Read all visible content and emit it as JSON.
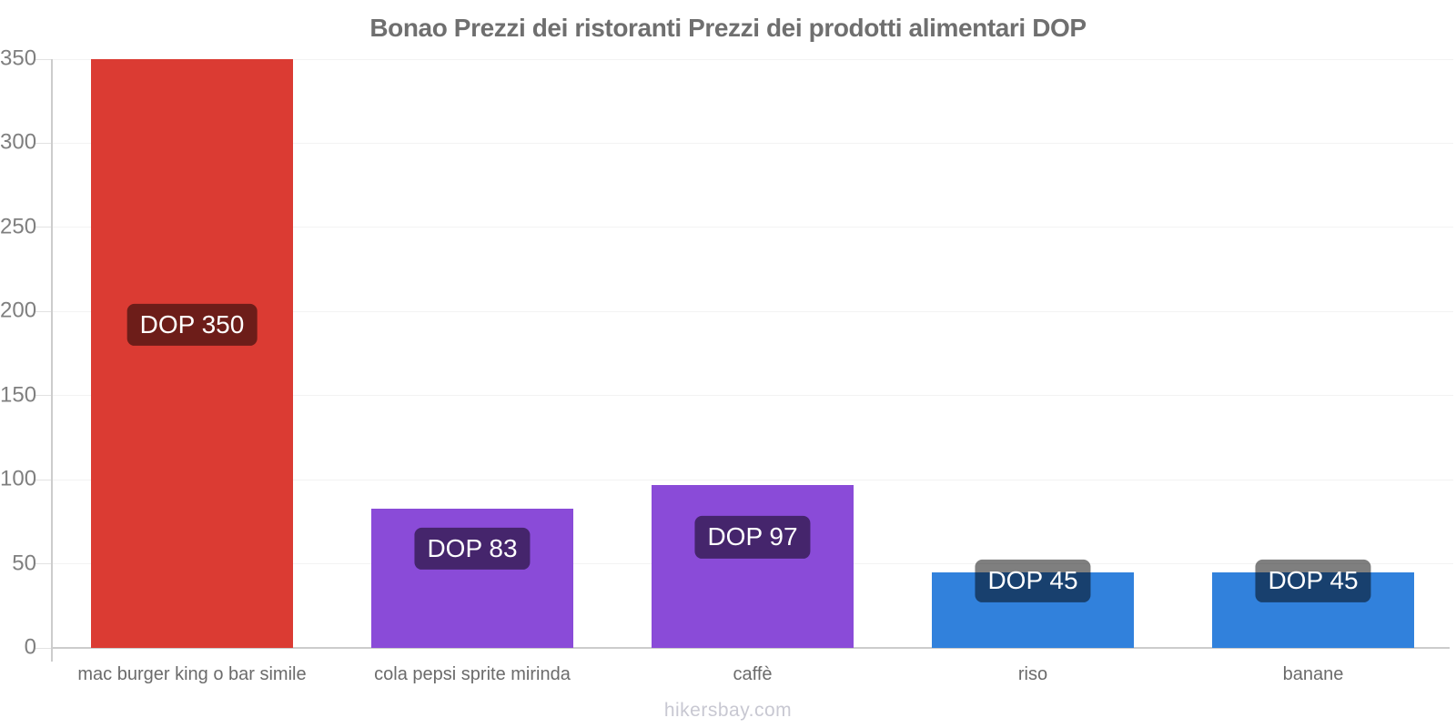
{
  "chart_data": {
    "type": "bar",
    "title": "Bonao Prezzi dei ristoranti Prezzi dei prodotti alimentari DOP",
    "currency": "DOP",
    "categories": [
      "mac burger king o bar simile",
      "cola pepsi sprite mirinda",
      "caffè",
      "riso",
      "banane"
    ],
    "values": [
      350,
      83,
      97,
      45,
      45
    ],
    "bar_labels": [
      "DOP 350",
      "DOP 83",
      "DOP 97",
      "DOP 45",
      "DOP 45"
    ],
    "bar_colors": [
      "#db3b33",
      "#8a4bd8",
      "#8a4bd8",
      "#3181dc",
      "#3181dc"
    ],
    "ylim": [
      0,
      350
    ],
    "yticks": [
      0,
      50,
      100,
      150,
      200,
      250,
      300,
      350
    ],
    "grid": true,
    "legend": "none",
    "xlabel": "",
    "ylabel": ""
  },
  "footer": "hikersbay.com",
  "colors": {
    "title_text": "#6f6f6f",
    "y_tick_text": "#7f7f7f",
    "category_text": "#6b6b6b",
    "gridline": "#f3f3f3",
    "tick_mark": "#e2e2e2",
    "axis_line": "#cccccc",
    "value_label_bg": "rgba(0,0,0,0.5)",
    "value_label_text": "#ffffff",
    "watermark_text": "#c8c8d2"
  }
}
